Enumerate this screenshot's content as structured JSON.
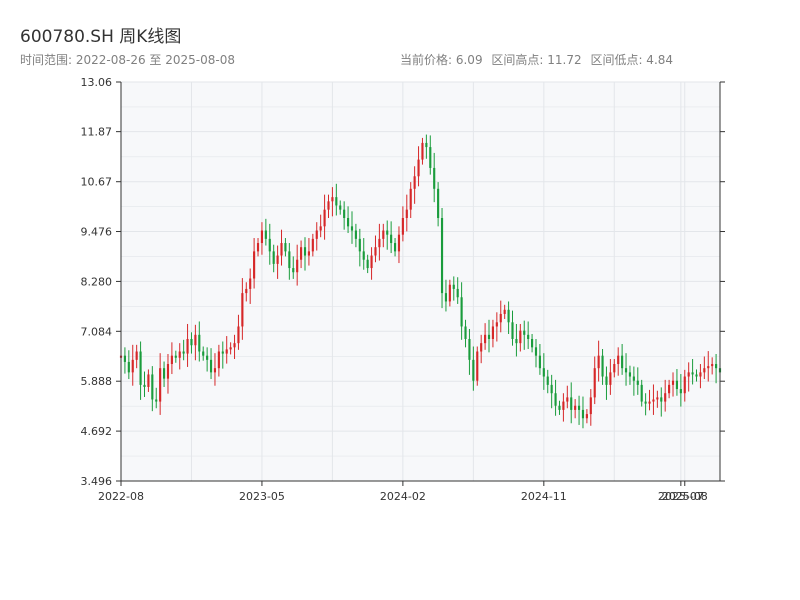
{
  "header": {
    "title": "600780.SH 周K线图",
    "range_text": "时间范围: 2022-08-26 至 2025-08-08",
    "current_price": "当前价格: 6.09",
    "high_text": "区间高点: 11.72",
    "low_text": "区间低点: 4.84"
  },
  "colors": {
    "up": "#d62728",
    "down": "#1a9c3c",
    "plot_bg": "#f7f8fa",
    "grid": "#e3e6ea",
    "axis": "#333333"
  },
  "chart_data": {
    "type": "candlestick",
    "title": "600780.SH 周K线图",
    "ylim": [
      3.496,
      13.06
    ],
    "y_ticks": [
      "3.496",
      "4.692",
      "5.888",
      "7.084",
      "8.280",
      "9.476",
      "10.67",
      "11.87",
      "13.06"
    ],
    "x_ticks": [
      {
        "label": "2022-08",
        "index": 0
      },
      {
        "label": "2023-05",
        "index": 36
      },
      {
        "label": "2024-02",
        "index": 72
      },
      {
        "label": "2024-11",
        "index": 108
      },
      {
        "label": "2025-07",
        "index": 143
      },
      {
        "label": "2025-08",
        "index": 144
      }
    ],
    "grid": true,
    "closes": [
      6.5,
      6.35,
      6.1,
      6.4,
      6.6,
      5.8,
      5.75,
      6.05,
      5.45,
      5.4,
      6.2,
      5.95,
      6.3,
      6.5,
      6.45,
      6.6,
      6.55,
      6.9,
      6.75,
      7.0,
      6.6,
      6.5,
      6.4,
      6.1,
      6.2,
      6.6,
      6.55,
      6.65,
      6.7,
      6.8,
      7.2,
      8.0,
      8.1,
      8.35,
      9.0,
      9.2,
      9.5,
      9.3,
      9.0,
      8.7,
      8.9,
      9.2,
      9.0,
      8.6,
      8.5,
      8.8,
      9.1,
      8.9,
      9.0,
      9.3,
      9.5,
      9.6,
      10.0,
      10.2,
      10.3,
      10.1,
      10.0,
      9.8,
      9.6,
      9.5,
      9.3,
      9.0,
      8.8,
      8.6,
      8.9,
      9.1,
      9.3,
      9.5,
      9.4,
      9.2,
      9.0,
      9.4,
      9.8,
      10.0,
      10.5,
      10.8,
      11.2,
      11.6,
      11.5,
      11.0,
      10.5,
      9.8,
      8.0,
      7.8,
      8.2,
      8.1,
      7.9,
      7.2,
      6.9,
      6.4,
      5.9,
      6.6,
      6.8,
      7.0,
      6.9,
      7.2,
      7.3,
      7.5,
      7.6,
      7.3,
      6.9,
      6.8,
      7.1,
      7.0,
      6.9,
      6.7,
      6.5,
      6.2,
      6.0,
      5.8,
      5.6,
      5.3,
      5.2,
      5.4,
      5.5,
      5.2,
      5.3,
      5.2,
      5.0,
      5.1,
      5.5,
      6.2,
      6.5,
      6.0,
      5.8,
      6.1,
      6.3,
      6.5,
      6.2,
      6.1,
      6.0,
      5.9,
      5.8,
      5.4,
      5.35,
      5.4,
      5.45,
      5.5,
      5.4,
      5.6,
      5.8,
      5.9,
      5.7,
      5.6,
      6.0,
      6.1,
      6.05,
      6.0,
      6.1,
      6.2,
      6.25,
      6.3,
      6.2,
      6.1
    ]
  }
}
